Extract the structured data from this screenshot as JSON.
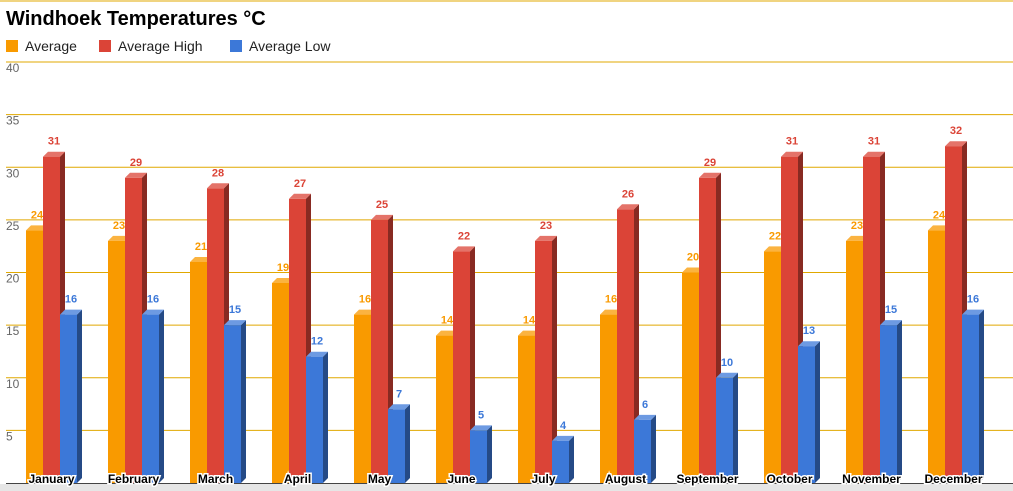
{
  "chart_data": {
    "type": "bar",
    "title": "Windhoek Temperatures °C",
    "categories": [
      "January",
      "February",
      "March",
      "April",
      "May",
      "June",
      "July",
      "August",
      "September",
      "October",
      "November",
      "December"
    ],
    "series": [
      {
        "name": "Average",
        "color": "#f99a00",
        "values": [
          24,
          23,
          21,
          19,
          16,
          14,
          14,
          16,
          20,
          22,
          23,
          24
        ]
      },
      {
        "name": "Average High",
        "color": "#db4437",
        "values": [
          31,
          29,
          28,
          27,
          25,
          22,
          23,
          26,
          29,
          31,
          31,
          32
        ]
      },
      {
        "name": "Average Low",
        "color": "#3c78d8",
        "values": [
          16,
          16,
          15,
          12,
          7,
          5,
          4,
          6,
          10,
          13,
          15,
          16
        ]
      }
    ],
    "yticks": [
      "5",
      "10",
      "15",
      "20",
      "25",
      "30",
      "35",
      "40"
    ],
    "ylim": [
      0,
      40
    ],
    "grid": true,
    "grid_color": "#e0a800",
    "legend_position": "top-left"
  }
}
